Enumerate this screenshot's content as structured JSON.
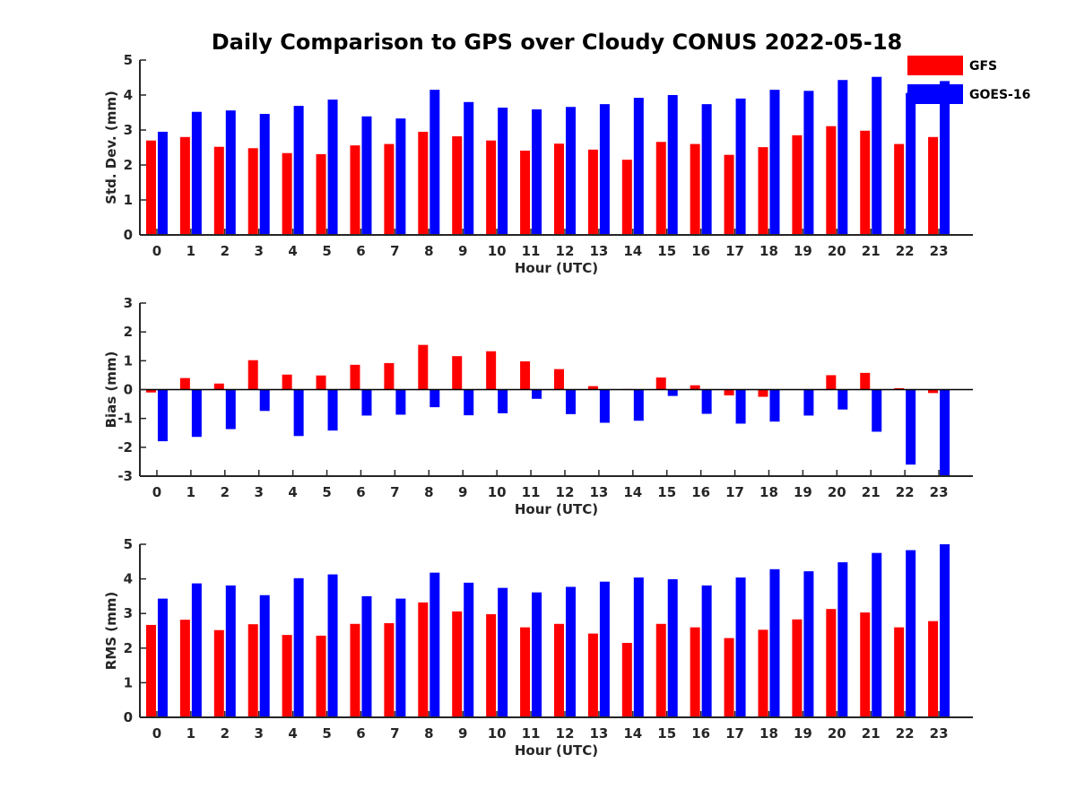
{
  "title": "Daily Comparison to GPS over Cloudy CONUS 2022-05-18",
  "legend": {
    "placement": "top-right",
    "entries": [
      {
        "name": "GFS",
        "color": "#ff0000"
      },
      {
        "name": "GOES-16",
        "color": "#0000ff"
      }
    ]
  },
  "chart_data": [
    {
      "type": "bar",
      "xlabel": "Hour (UTC)",
      "ylabel": "Std. Dev. (mm)",
      "ylim": [
        0,
        5
      ],
      "yticks": [
        "0",
        "1",
        "2",
        "3",
        "4",
        "5"
      ],
      "categories": [
        "0",
        "1",
        "2",
        "3",
        "4",
        "5",
        "6",
        "7",
        "8",
        "9",
        "10",
        "11",
        "12",
        "13",
        "14",
        "15",
        "16",
        "17",
        "18",
        "19",
        "20",
        "21",
        "22",
        "23"
      ],
      "series": [
        {
          "name": "GFS",
          "color": "#ff0000",
          "values": [
            2.7,
            2.8,
            2.52,
            2.48,
            2.34,
            2.31,
            2.56,
            2.6,
            2.95,
            2.82,
            2.7,
            2.41,
            2.61,
            2.44,
            2.15,
            2.66,
            2.6,
            2.29,
            2.51,
            2.85,
            3.11,
            2.98,
            2.6,
            2.8
          ]
        },
        {
          "name": "GOES-16",
          "color": "#0000ff",
          "values": [
            2.95,
            3.52,
            3.56,
            3.46,
            3.69,
            3.87,
            3.39,
            3.33,
            4.15,
            3.8,
            3.64,
            3.59,
            3.66,
            3.74,
            3.92,
            4.0,
            3.74,
            3.9,
            4.15,
            4.12,
            4.43,
            4.52,
            4.06,
            4.4
          ]
        }
      ]
    },
    {
      "type": "bar",
      "xlabel": "Hour (UTC)",
      "ylabel": "Bias (mm)",
      "ylim": [
        -3,
        3
      ],
      "yticks": [
        "-3",
        "-2",
        "-1",
        "0",
        "1",
        "2",
        "3"
      ],
      "categories": [
        "0",
        "1",
        "2",
        "3",
        "4",
        "5",
        "6",
        "7",
        "8",
        "9",
        "10",
        "11",
        "12",
        "13",
        "14",
        "15",
        "16",
        "17",
        "18",
        "19",
        "20",
        "21",
        "22",
        "23"
      ],
      "series": [
        {
          "name": "GFS",
          "color": "#ff0000",
          "values": [
            -0.1,
            0.4,
            0.21,
            1.02,
            0.52,
            0.49,
            0.86,
            0.92,
            1.55,
            1.16,
            1.33,
            0.98,
            0.71,
            0.12,
            0.02,
            0.42,
            0.15,
            -0.2,
            -0.25,
            0.0,
            0.5,
            0.58,
            0.05,
            -0.12
          ]
        },
        {
          "name": "GOES-16",
          "color": "#0000ff",
          "values": [
            -1.79,
            -1.64,
            -1.37,
            -0.74,
            -1.61,
            -1.42,
            -0.9,
            -0.87,
            -0.61,
            -0.89,
            -0.82,
            -0.32,
            -0.85,
            -1.15,
            -1.08,
            -0.22,
            -0.84,
            -1.18,
            -1.11,
            -0.9,
            -0.69,
            -1.46,
            -2.6,
            -3.0
          ]
        }
      ]
    },
    {
      "type": "bar",
      "xlabel": "Hour (UTC)",
      "ylabel": "RMS (mm)",
      "ylim": [
        0,
        5
      ],
      "yticks": [
        "0",
        "1",
        "2",
        "3",
        "4",
        "5"
      ],
      "categories": [
        "0",
        "1",
        "2",
        "3",
        "4",
        "5",
        "6",
        "7",
        "8",
        "9",
        "10",
        "11",
        "12",
        "13",
        "14",
        "15",
        "16",
        "17",
        "18",
        "19",
        "20",
        "21",
        "22",
        "23"
      ],
      "series": [
        {
          "name": "GFS",
          "color": "#ff0000",
          "values": [
            2.67,
            2.82,
            2.52,
            2.69,
            2.38,
            2.36,
            2.7,
            2.72,
            3.32,
            3.06,
            2.98,
            2.6,
            2.7,
            2.42,
            2.15,
            2.7,
            2.6,
            2.29,
            2.53,
            2.83,
            3.13,
            3.03,
            2.6,
            2.78
          ]
        },
        {
          "name": "GOES-16",
          "color": "#0000ff",
          "values": [
            3.43,
            3.87,
            3.81,
            3.53,
            4.02,
            4.13,
            3.5,
            3.43,
            4.18,
            3.89,
            3.74,
            3.61,
            3.77,
            3.92,
            4.04,
            3.99,
            3.81,
            4.04,
            4.28,
            4.22,
            4.48,
            4.75,
            4.83,
            5.0
          ]
        }
      ]
    }
  ]
}
